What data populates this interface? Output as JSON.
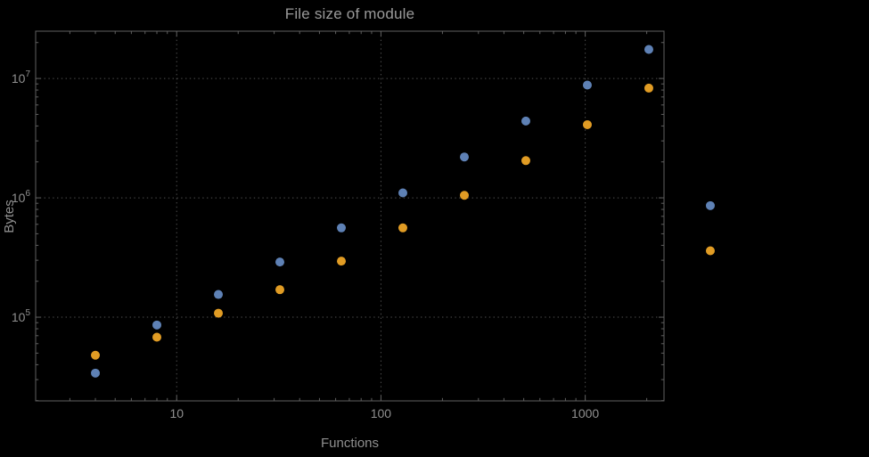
{
  "colors": {
    "background": "#000000",
    "frame": "#606060",
    "grid": "#4f4f4f",
    "tick": "#606060",
    "label": "#8f8f8f",
    "series_blue": "#5E81B5",
    "series_orange": "#E19C24"
  },
  "chart_data": {
    "type": "scatter",
    "title": "File size of module",
    "xlabel": "Functions",
    "ylabel": "Bytes",
    "xscale": "log",
    "yscale": "log",
    "xlim": [
      2.04,
      2430
    ],
    "ylim": [
      19900,
      24900000
    ],
    "grid": true,
    "legend": "none",
    "x_major_ticks": [
      10,
      100,
      1000
    ],
    "x_tick_labels": [
      "10",
      "100",
      "1000"
    ],
    "y_major_ticks": [
      100000,
      1000000,
      10000000
    ],
    "y_tick_labels": [
      {
        "base": "10",
        "exp": "5"
      },
      {
        "base": "10",
        "exp": "6"
      },
      {
        "base": "10",
        "exp": "7"
      }
    ],
    "series": [
      {
        "name": "blue",
        "color": "#5E81B5",
        "x": [
          4,
          8,
          16,
          32,
          64,
          128,
          256,
          512,
          1024,
          2048,
          4096
        ],
        "y": [
          34000,
          86000,
          155000,
          290000,
          560000,
          1100000,
          2200000,
          4400000,
          8800000,
          17500000,
          860000
        ]
      },
      {
        "name": "orange",
        "color": "#E19C24",
        "x": [
          4,
          8,
          16,
          32,
          64,
          128,
          256,
          512,
          1024,
          2048,
          4096
        ],
        "y": [
          48000,
          68000,
          108000,
          170000,
          295000,
          560000,
          1050000,
          2050000,
          4100000,
          8300000,
          360000
        ]
      }
    ]
  }
}
